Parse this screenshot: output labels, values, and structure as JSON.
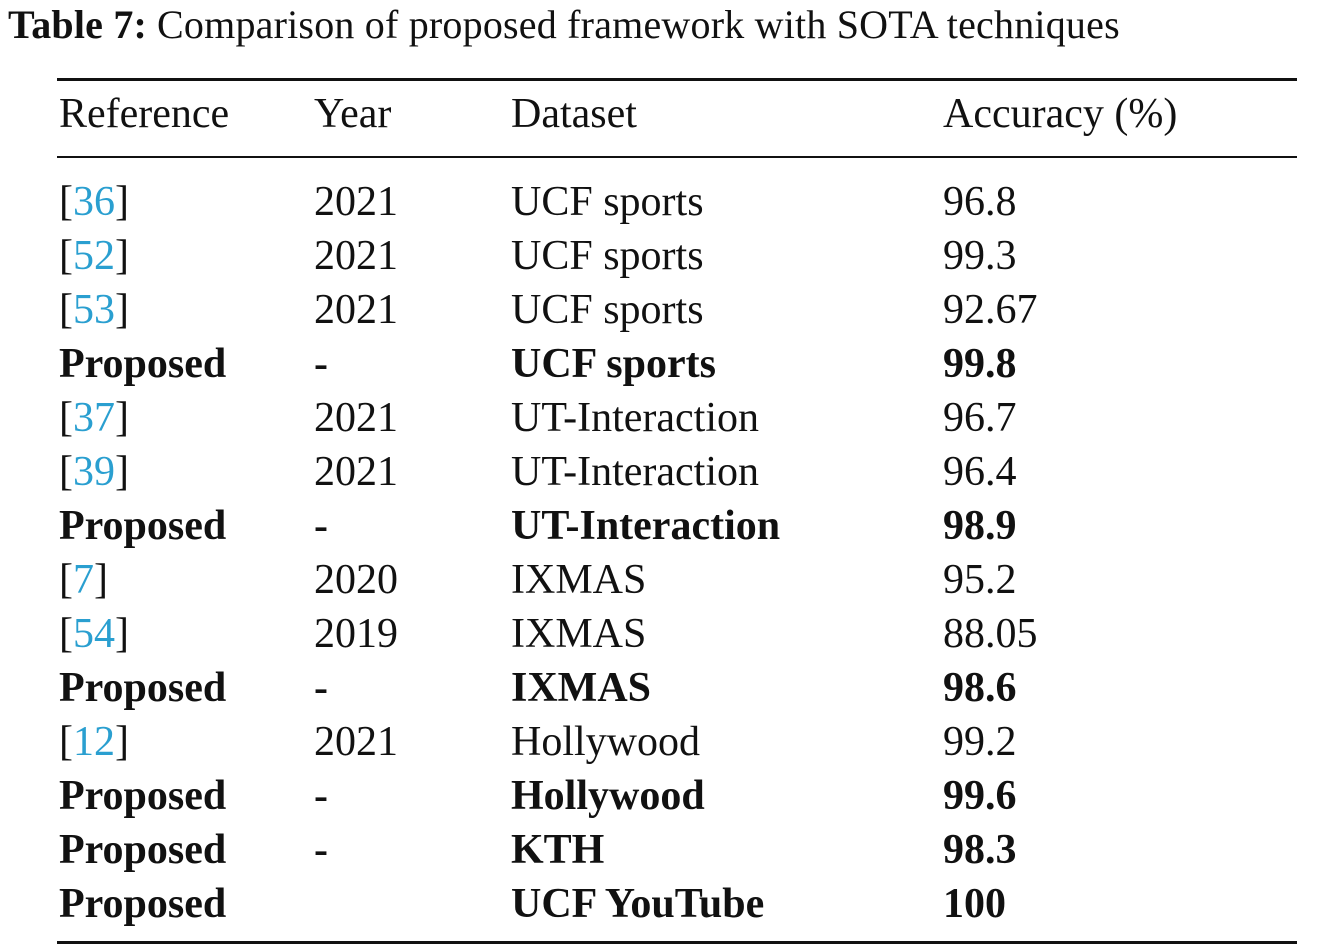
{
  "caption": {
    "label": "Table 7:",
    "title": "Comparison of proposed framework with SOTA techniques"
  },
  "table": {
    "headers": [
      "Reference",
      "Year",
      "Dataset",
      "Accuracy (%)"
    ],
    "rows": [
      {
        "ref": "36",
        "year": "2021",
        "dataset": "UCF sports",
        "accuracy": "96.8"
      },
      {
        "ref": "52",
        "year": "2021",
        "dataset": "UCF sports",
        "accuracy": "99.3"
      },
      {
        "ref": "53",
        "year": "2021",
        "dataset": "UCF sports",
        "accuracy": "92.67"
      },
      {
        "ref": "Proposed",
        "year": "-",
        "dataset": "UCF sports",
        "accuracy": "99.8"
      },
      {
        "ref": "37",
        "year": "2021",
        "dataset": "UT-Interaction",
        "accuracy": "96.7"
      },
      {
        "ref": "39",
        "year": "2021",
        "dataset": "UT-Interaction",
        "accuracy": "96.4"
      },
      {
        "ref": "Proposed",
        "year": "-",
        "dataset": "UT-Interaction",
        "accuracy": "98.9"
      },
      {
        "ref": "7",
        "year": "2020",
        "dataset": "IXMAS",
        "accuracy": "95.2"
      },
      {
        "ref": "54",
        "year": "2019",
        "dataset": "IXMAS",
        "accuracy": "88.05"
      },
      {
        "ref": "Proposed",
        "year": "-",
        "dataset": "IXMAS",
        "accuracy": "98.6"
      },
      {
        "ref": "12",
        "year": "2021",
        "dataset": "Hollywood",
        "accuracy": "99.2"
      },
      {
        "ref": "Proposed",
        "year": "-",
        "dataset": "Hollywood",
        "accuracy": "99.6"
      },
      {
        "ref": "Proposed",
        "year": "-",
        "dataset": "KTH",
        "accuracy": "98.3"
      },
      {
        "ref": "Proposed",
        "year": "",
        "dataset": "UCF YouTube",
        "accuracy": "100"
      }
    ]
  },
  "colors": {
    "citation": "#2a9fd0",
    "text": "#111111"
  }
}
